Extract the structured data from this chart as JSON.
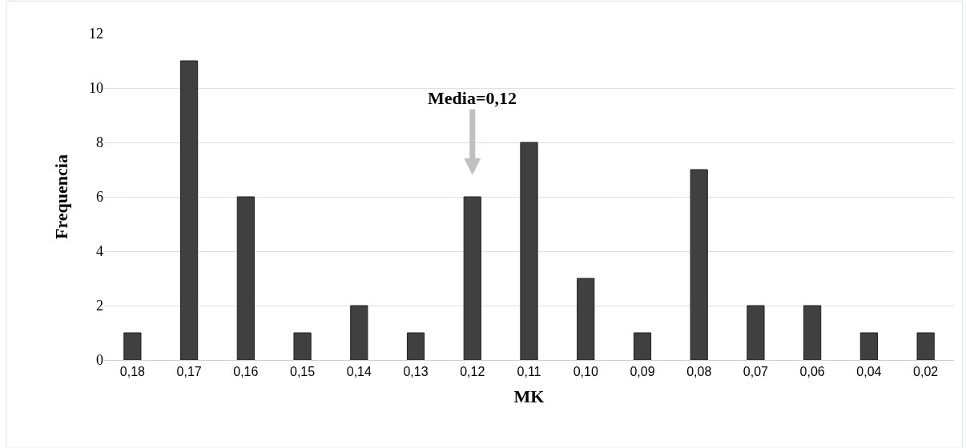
{
  "chart_data": {
    "type": "bar",
    "xlabel": "MK",
    "ylabel": "Frequencia",
    "categories": [
      "0,18",
      "0,17",
      "0,16",
      "0,15",
      "0,14",
      "0,13",
      "0,12",
      "0,11",
      "0,10",
      "0,09",
      "0,08",
      "0,07",
      "0,06",
      "0,04",
      "0,02"
    ],
    "values": [
      1,
      11,
      6,
      1,
      2,
      1,
      6,
      8,
      3,
      1,
      7,
      2,
      2,
      1,
      1
    ],
    "color": "#404040",
    "ylim": [
      0,
      12
    ],
    "yticks": [
      0,
      2,
      4,
      6,
      8,
      10,
      12
    ],
    "grid": "y",
    "annotations": [
      "Media=0,12"
    ]
  }
}
